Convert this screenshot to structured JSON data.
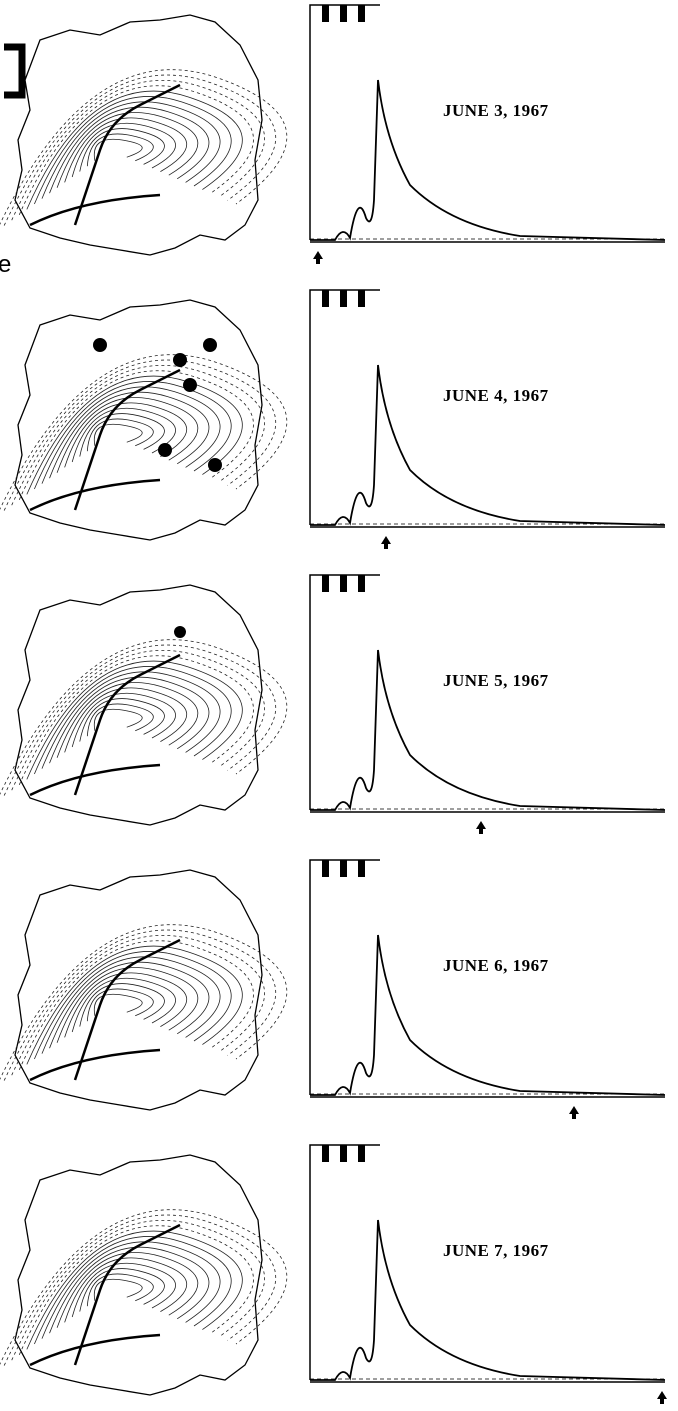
{
  "figure": {
    "margin_text": "e",
    "panels": [
      {
        "label": "JUNE 3, 1967"
      },
      {
        "label": "JUNE 4, 1967"
      },
      {
        "label": "JUNE 5, 1967"
      },
      {
        "label": "JUNE 6, 1967"
      },
      {
        "label": "JUNE 7, 1967"
      }
    ]
  }
}
